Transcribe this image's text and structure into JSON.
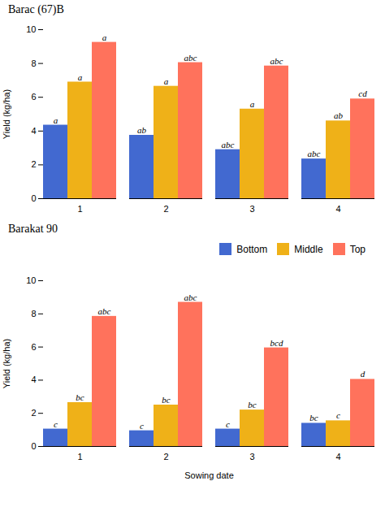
{
  "chart_data": [
    {
      "type": "bar",
      "title": "Barac (67)B",
      "categories": [
        1,
        2,
        3,
        4
      ],
      "series": [
        {
          "name": "Bottom",
          "values": [
            4.35,
            3.75,
            2.9,
            2.35
          ],
          "annotations": [
            "a",
            "ab",
            "abc",
            "abc"
          ]
        },
        {
          "name": "Middle",
          "values": [
            6.9,
            6.65,
            5.3,
            4.6
          ],
          "annotations": [
            "a",
            "a",
            "a",
            "ab"
          ]
        },
        {
          "name": "Top",
          "values": [
            9.25,
            8.05,
            7.85,
            5.9
          ],
          "annotations": [
            "a",
            "abc",
            "abc",
            "cd"
          ]
        }
      ],
      "ylabel": "Yield (kg/ha)",
      "ylim": [
        0,
        10
      ],
      "yticks": [
        0,
        2,
        4,
        6,
        8,
        10
      ],
      "grid": false,
      "legend": false
    },
    {
      "type": "bar",
      "title": "Barakat 90",
      "categories": [
        1,
        2,
        3,
        4
      ],
      "series": [
        {
          "name": "Bottom",
          "values": [
            1.05,
            0.95,
            1.05,
            1.4
          ],
          "annotations": [
            "c",
            "c",
            "c",
            "bc"
          ]
        },
        {
          "name": "Middle",
          "values": [
            2.65,
            2.5,
            2.2,
            1.55
          ],
          "annotations": [
            "bc",
            "bc",
            "bc",
            "c"
          ]
        },
        {
          "name": "Top",
          "values": [
            7.85,
            8.7,
            5.95,
            4.05
          ],
          "annotations": [
            "abc",
            "abc",
            "bcd",
            "d"
          ]
        }
      ],
      "xlabel": "Sowing date",
      "ylabel": "Yield (kg/ha)",
      "ylim": [
        0,
        10
      ],
      "yticks": [
        0,
        2,
        4,
        6,
        8,
        10
      ],
      "grid": false,
      "legend": "upper right"
    }
  ]
}
